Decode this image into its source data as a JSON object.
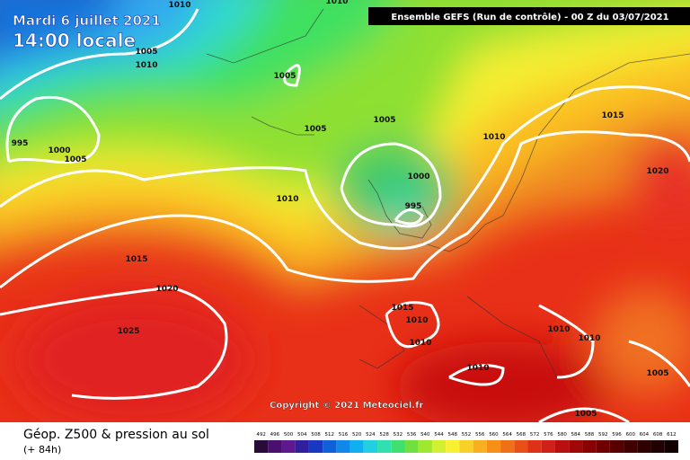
{
  "header": {
    "date": "Mardi 6 juillet 2021",
    "time": "14:00 locale",
    "run": "Ensemble GEFS  (Run de contrôle)  -  00 Z du 03/07/2021"
  },
  "copyright": "Copyright © 2021 Meteociel.fr",
  "footer": {
    "title": "Géop. Z500 & pression au sol",
    "lead": "(+ 84h)"
  },
  "legend": {
    "labels": [
      492,
      496,
      500,
      504,
      508,
      512,
      516,
      520,
      524,
      528,
      532,
      536,
      540,
      544,
      548,
      552,
      556,
      560,
      564,
      568,
      572,
      576,
      580,
      584,
      588,
      592,
      596,
      600,
      604,
      608,
      612
    ]
  },
  "isobar_labels": [
    "1010",
    "1010",
    "1005",
    "1010",
    "1005",
    "995",
    "1000",
    "1005",
    "1005",
    "1005",
    "1010",
    "1015",
    "1020",
    "1000",
    "1010",
    "995",
    "1015",
    "1020",
    "1015",
    "1010",
    "1025",
    "1010",
    "1010",
    "1010",
    "1010",
    "1005",
    "1005"
  ]
}
